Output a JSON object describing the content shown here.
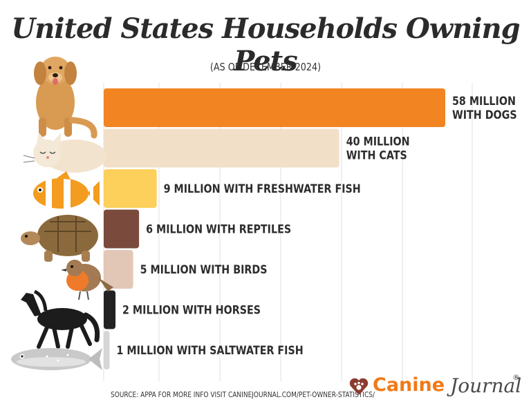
{
  "chart_data": {
    "type": "bar",
    "orientation": "horizontal",
    "title": "United States Households Owning Pets",
    "subtitle": "(AS OF DECEMBER 2024)",
    "xlabel": "",
    "ylabel": "",
    "grid": true,
    "unit": "million households",
    "categories": [
      "Dogs",
      "Cats",
      "Freshwater Fish",
      "Reptiles",
      "Birds",
      "Horses",
      "Saltwater Fish"
    ],
    "values": [
      58,
      40,
      9,
      6,
      5,
      2,
      1
    ],
    "data_labels": [
      [
        "58 MILLION",
        "WITH DOGS"
      ],
      [
        "40 MILLION",
        "WITH CATS"
      ],
      [
        "9 MILLION WITH FRESHWATER FISH"
      ],
      [
        "6 MILLION WITH REPTILES"
      ],
      [
        "5 MILLION WITH BIRDS"
      ],
      [
        "2 MILLION WITH HORSES"
      ],
      [
        "1 MILLION WITH SALTWATER FISH"
      ]
    ],
    "colors": [
      "#f28421",
      "#f2dfc8",
      "#fcd05b",
      "#7a4b3c",
      "#e2c7b7",
      "#222222",
      "#d6d6d6"
    ],
    "icons": [
      "dog-icon",
      "cat-icon",
      "clownfish-icon",
      "tortoise-icon",
      "robin-icon",
      "horse-icon",
      "saltwater-fish-icon"
    ]
  },
  "footer": {
    "source": "SOURCE: APPA FOR MORE INFO VISIT  CANINEJOURNAL.COM/PET-OWNER-STATISTICS/"
  },
  "logo": {
    "word1": "Canine",
    "word2": "Journal",
    "mark": "®",
    "brand_color": "#f07a18"
  }
}
